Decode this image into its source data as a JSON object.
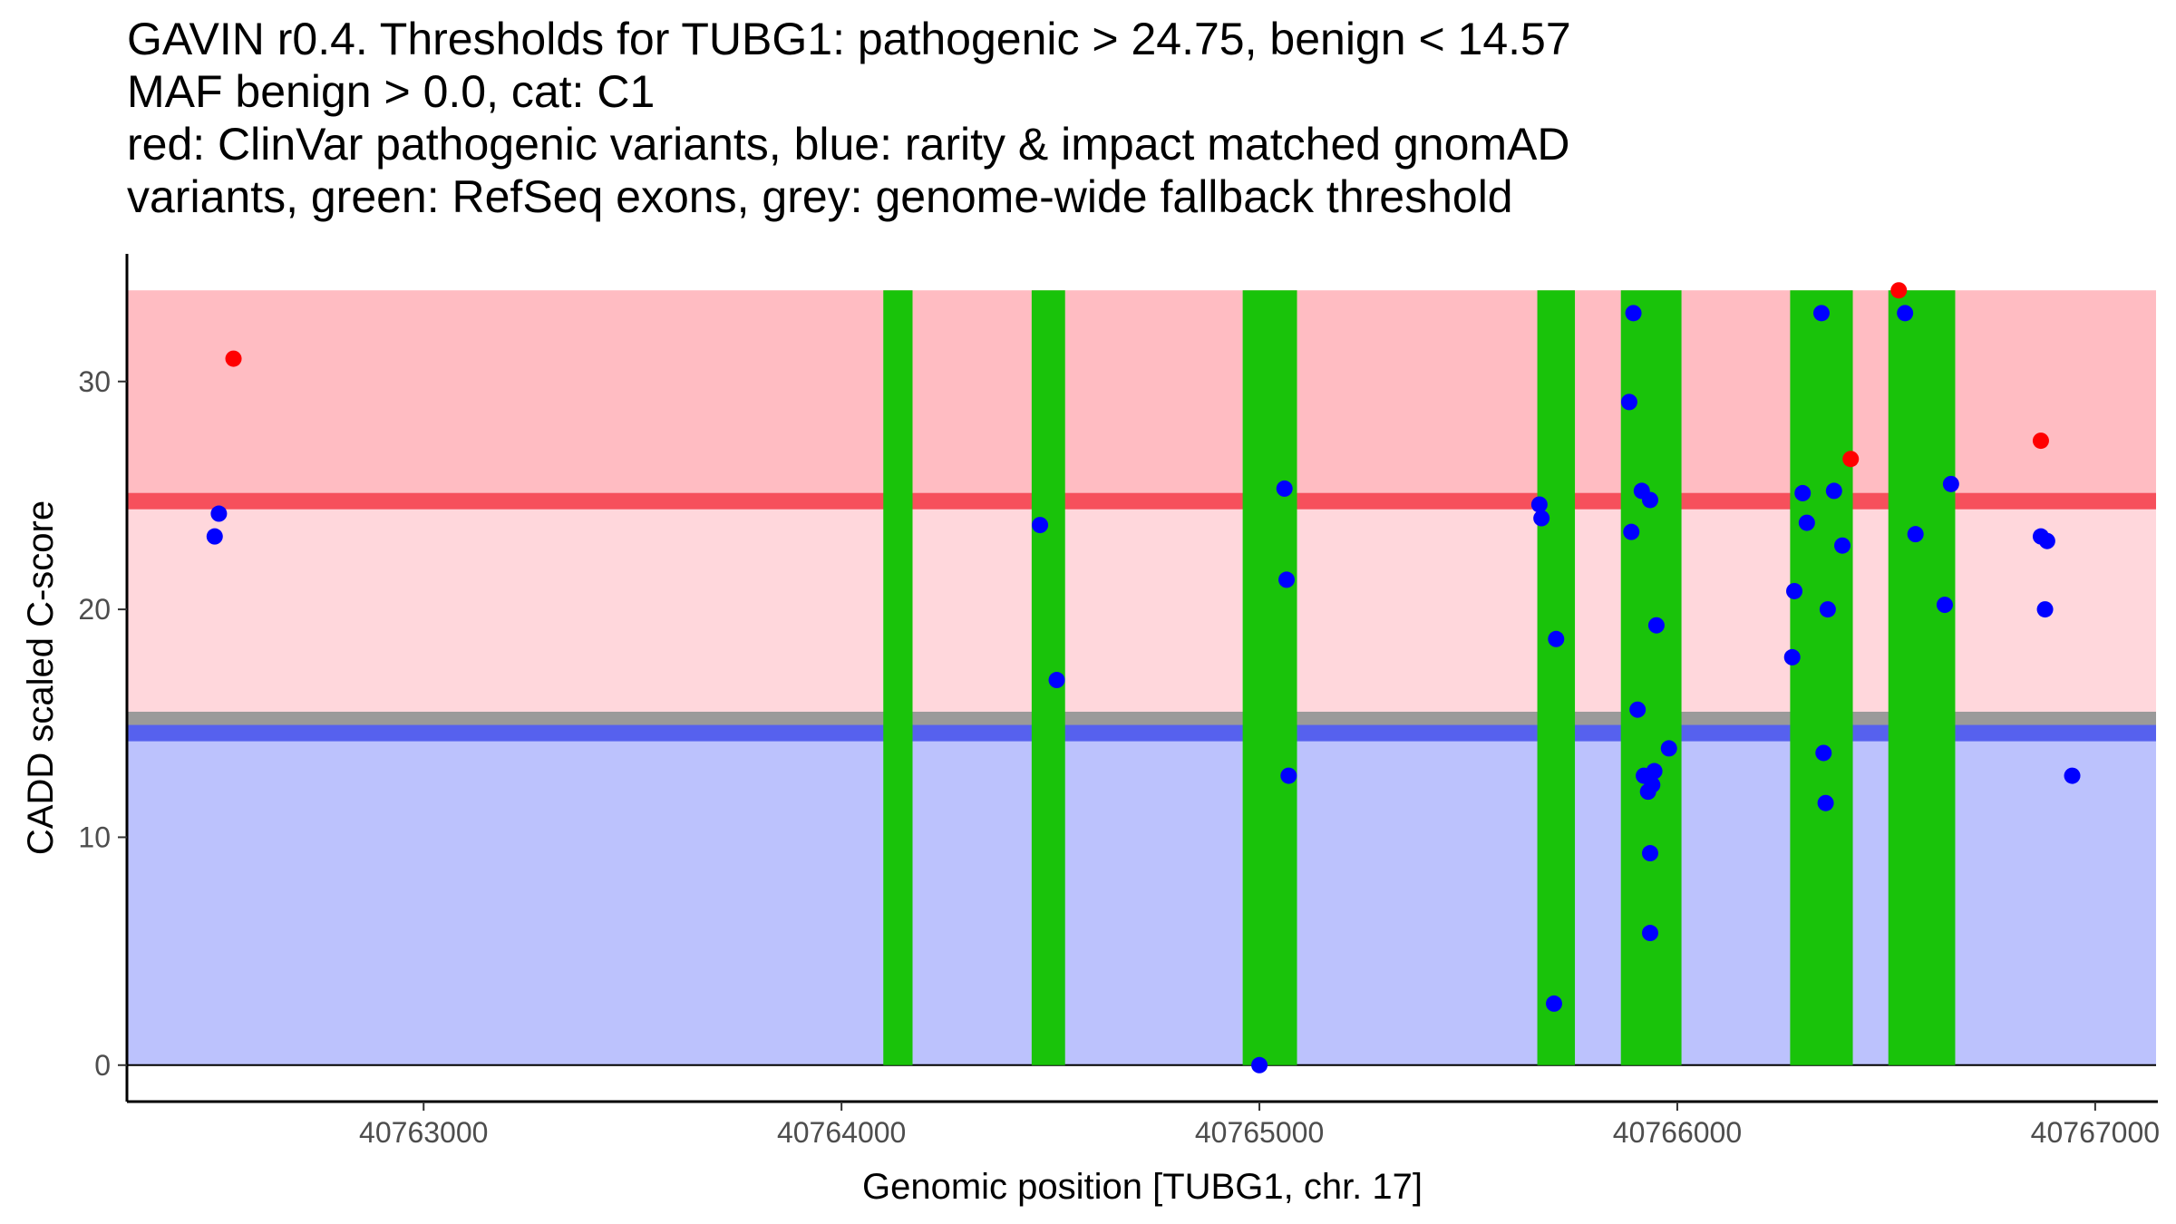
{
  "chart_data": {
    "type": "scatter",
    "title_lines": [
      "GAVIN r0.4. Thresholds for TUBG1: pathogenic > 24.75, benign < 14.57",
      "MAF benign > 0.0, cat: C1",
      "red: ClinVar pathogenic variants, blue: rarity & impact matched gnomAD",
      "variants, green: RefSeq exons, grey: genome-wide fallback threshold"
    ],
    "xlabel": "Genomic position [TUBG1, chr. 17]",
    "ylabel": "CADD scaled C-score",
    "xlim": [
      40762290,
      40767150
    ],
    "ylim": [
      -1.6,
      35.6
    ],
    "x_ticks": [
      40763000,
      40764000,
      40765000,
      40766000,
      40767000
    ],
    "y_ticks": [
      0,
      10,
      20,
      30
    ],
    "thresholds": {
      "pathogenic": 24.75,
      "benign": 14.57,
      "genome_wide_fallback": 15.15,
      "max_score": 34
    },
    "colors": {
      "pathogenic_zone": "#ffbcc2",
      "middle_zone": "#ffd7dc",
      "benign_zone": "#bcc2fd",
      "pathogenic_line": "#f6505c",
      "benign_line": "#5661ee",
      "fallback_line": "#9a9a9a",
      "exon": "#19c30a",
      "clinvar": "#ff0000",
      "gnomad": "#0000ff"
    },
    "exons": [
      [
        40764100,
        40764170
      ],
      [
        40764455,
        40764535
      ],
      [
        40764960,
        40765090
      ],
      [
        40765665,
        40765755
      ],
      [
        40765865,
        40766010
      ],
      [
        40766270,
        40766420
      ],
      [
        40766505,
        40766665
      ]
    ],
    "series": [
      {
        "name": "ClinVar pathogenic variants",
        "color": "#ff0000",
        "points": [
          [
            40762545,
            31.0
          ],
          [
            40766415,
            26.6
          ],
          [
            40766530,
            34.0
          ],
          [
            40766870,
            27.4
          ]
        ]
      },
      {
        "name": "rarity & impact matched gnomAD variants",
        "color": "#0000ff",
        "points": [
          [
            40762500,
            23.2
          ],
          [
            40762510,
            24.2
          ],
          [
            40764475,
            23.7
          ],
          [
            40764515,
            16.9
          ],
          [
            40765000,
            0.0
          ],
          [
            40765060,
            25.3
          ],
          [
            40765065,
            21.3
          ],
          [
            40765070,
            12.7
          ],
          [
            40765670,
            24.6
          ],
          [
            40765675,
            24.0
          ],
          [
            40765710,
            18.7
          ],
          [
            40765705,
            2.7
          ],
          [
            40765885,
            29.1
          ],
          [
            40765890,
            23.4
          ],
          [
            40765895,
            33.0
          ],
          [
            40765905,
            15.6
          ],
          [
            40765915,
            25.2
          ],
          [
            40765920,
            12.7
          ],
          [
            40765930,
            12.0
          ],
          [
            40765935,
            24.8
          ],
          [
            40765935,
            9.3
          ],
          [
            40765935,
            5.8
          ],
          [
            40765940,
            12.3
          ],
          [
            40765945,
            12.9
          ],
          [
            40765950,
            19.3
          ],
          [
            40765980,
            13.9
          ],
          [
            40766275,
            17.9
          ],
          [
            40766280,
            20.8
          ],
          [
            40766300,
            25.1
          ],
          [
            40766310,
            23.8
          ],
          [
            40766345,
            33.0
          ],
          [
            40766350,
            13.7
          ],
          [
            40766355,
            11.5
          ],
          [
            40766360,
            20.0
          ],
          [
            40766375,
            25.2
          ],
          [
            40766395,
            22.8
          ],
          [
            40766545,
            33.0
          ],
          [
            40766570,
            23.3
          ],
          [
            40766640,
            20.2
          ],
          [
            40766655,
            25.5
          ],
          [
            40766870,
            23.2
          ],
          [
            40766880,
            20.0
          ],
          [
            40766885,
            23.0
          ],
          [
            40766945,
            12.7
          ]
        ]
      }
    ]
  }
}
